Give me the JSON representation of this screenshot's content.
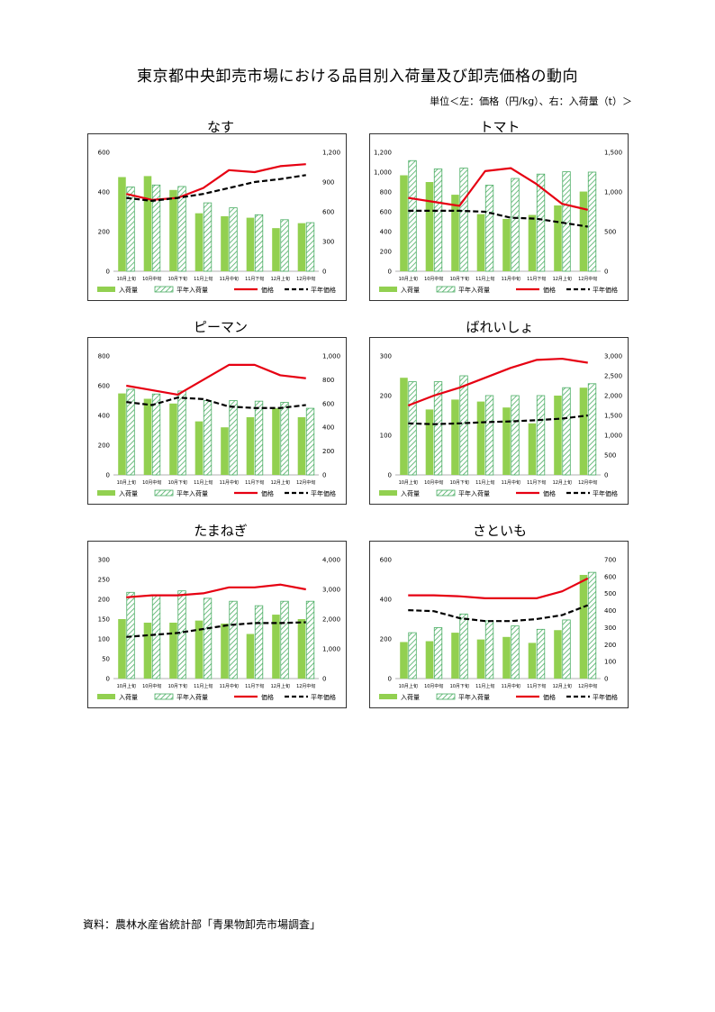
{
  "page": {
    "title": "東京都中央卸売市場における品目別入荷量及び卸売価格の動向",
    "unit_note": "単位＜左：価格（円/kg）、右：入荷量（t）＞",
    "source": "資料：農林水産省統計部「青果物卸売市場調査」"
  },
  "colors": {
    "bar_current": "#92D050",
    "bar_normal_stroke": "#4BAE64",
    "line_price": "#E60012",
    "line_normal": "#000000"
  },
  "legend": {
    "volume": "入荷量",
    "normal_volume": "平年入荷量",
    "price": "価格",
    "normal_price": "平年価格"
  },
  "categories": [
    "10月上旬",
    "10月中旬",
    "10月下旬",
    "11月上旬",
    "11月中旬",
    "11月下旬",
    "12月上旬",
    "12月中旬"
  ],
  "chart_data": [
    {
      "id": "nasu",
      "type": "bar+line",
      "title": "なす",
      "left_axis": {
        "min": 0,
        "max": 600,
        "ticks": [
          "0",
          "200",
          "400",
          "600"
        ]
      },
      "right_axis": {
        "min": 0,
        "max": 1200,
        "ticks": [
          "0",
          "300",
          "600",
          "900",
          "1,200"
        ]
      },
      "volume": [
        950,
        960,
        820,
        585,
        555,
        540,
        435,
        485
      ],
      "normal_volume": [
        850,
        870,
        855,
        690,
        640,
        570,
        520,
        490
      ],
      "price": [
        390,
        360,
        370,
        420,
        510,
        500,
        530,
        540
      ],
      "normal_price": [
        370,
        355,
        370,
        390,
        420,
        450,
        465,
        485
      ]
    },
    {
      "id": "tomato",
      "type": "bar+line",
      "title": "トマト",
      "left_axis": {
        "min": 0,
        "max": 1200,
        "ticks": [
          "0",
          "200",
          "400",
          "600",
          "800",
          "1,000",
          "1,200"
        ]
      },
      "right_axis": {
        "min": 0,
        "max": 1500,
        "ticks": [
          "0",
          "500",
          "1,000",
          "1,500"
        ]
      },
      "volume": [
        1210,
        1125,
        965,
        720,
        660,
        710,
        830,
        1005
      ],
      "normal_volume": [
        1395,
        1290,
        1300,
        1085,
        1170,
        1225,
        1255,
        1250
      ],
      "price": [
        740,
        700,
        660,
        1010,
        1040,
        880,
        680,
        620
      ],
      "normal_price": [
        610,
        610,
        610,
        600,
        540,
        530,
        490,
        450
      ]
    },
    {
      "id": "piman",
      "type": "bar+line",
      "title": "ピーマン",
      "left_axis": {
        "min": 0,
        "max": 800,
        "ticks": [
          "0",
          "200",
          "400",
          "600",
          "800"
        ]
      },
      "right_axis": {
        "min": 0,
        "max": 1000,
        "ticks": [
          "0",
          "200",
          "400",
          "600",
          "800",
          "1,000"
        ]
      },
      "volume": [
        685,
        640,
        600,
        450,
        400,
        485,
        560,
        485
      ],
      "normal_volume": [
        720,
        680,
        705,
        625,
        625,
        620,
        610,
        560
      ],
      "price": [
        600,
        570,
        540,
        640,
        740,
        740,
        670,
        650
      ],
      "normal_price": [
        490,
        470,
        520,
        510,
        460,
        450,
        450,
        470
      ]
    },
    {
      "id": "bareisho",
      "type": "bar+line",
      "title": "ばれいしょ",
      "left_axis": {
        "min": 0,
        "max": 300,
        "ticks": [
          "0",
          "100",
          "200",
          "300"
        ]
      },
      "right_axis": {
        "min": 0,
        "max": 3000,
        "ticks": [
          "0",
          "500",
          "1,000",
          "1,500",
          "2,000",
          "2,500",
          "3,000"
        ]
      },
      "volume": [
        2450,
        1650,
        1900,
        1850,
        1700,
        1300,
        2000,
        2200
      ],
      "normal_volume": [
        2350,
        2350,
        2500,
        2000,
        2000,
        2000,
        2200,
        2300
      ],
      "price": [
        175,
        200,
        220,
        245,
        270,
        290,
        293,
        283
      ],
      "normal_price": [
        130,
        128,
        130,
        133,
        135,
        138,
        142,
        150
      ]
    },
    {
      "id": "tamanegi",
      "type": "bar+line",
      "title": "たまねぎ",
      "left_axis": {
        "min": 0,
        "max": 300,
        "ticks": [
          "0",
          "50",
          "100",
          "150",
          "200",
          "250",
          "300"
        ]
      },
      "right_axis": {
        "min": 0,
        "max": 4000,
        "ticks": [
          "0",
          "1,000",
          "2,000",
          "3,000",
          "4,000"
        ]
      },
      "volume": [
        2000,
        1880,
        1880,
        1950,
        1850,
        1500,
        2150,
        2000
      ],
      "normal_volume": [
        2900,
        2800,
        2950,
        2700,
        2600,
        2450,
        2600,
        2600
      ],
      "price": [
        205,
        210,
        210,
        215,
        230,
        230,
        237,
        225
      ],
      "normal_price": [
        105,
        110,
        115,
        125,
        135,
        140,
        140,
        142
      ]
    },
    {
      "id": "satoimo",
      "type": "bar+line",
      "title": "さといも",
      "left_axis": {
        "min": 0,
        "max": 600,
        "ticks": [
          "0",
          "200",
          "400",
          "600"
        ]
      },
      "right_axis": {
        "min": 0,
        "max": 700,
        "ticks": [
          "0",
          "100",
          "200",
          "300",
          "400",
          "500",
          "600",
          "700"
        ]
      },
      "volume": [
        215,
        220,
        270,
        230,
        245,
        210,
        285,
        610
      ],
      "normal_volume": [
        270,
        300,
        380,
        340,
        310,
        290,
        345,
        625
      ],
      "price": [
        420,
        420,
        415,
        405,
        405,
        405,
        440,
        505
      ],
      "normal_price": [
        345,
        340,
        305,
        290,
        290,
        300,
        320,
        370
      ]
    }
  ]
}
